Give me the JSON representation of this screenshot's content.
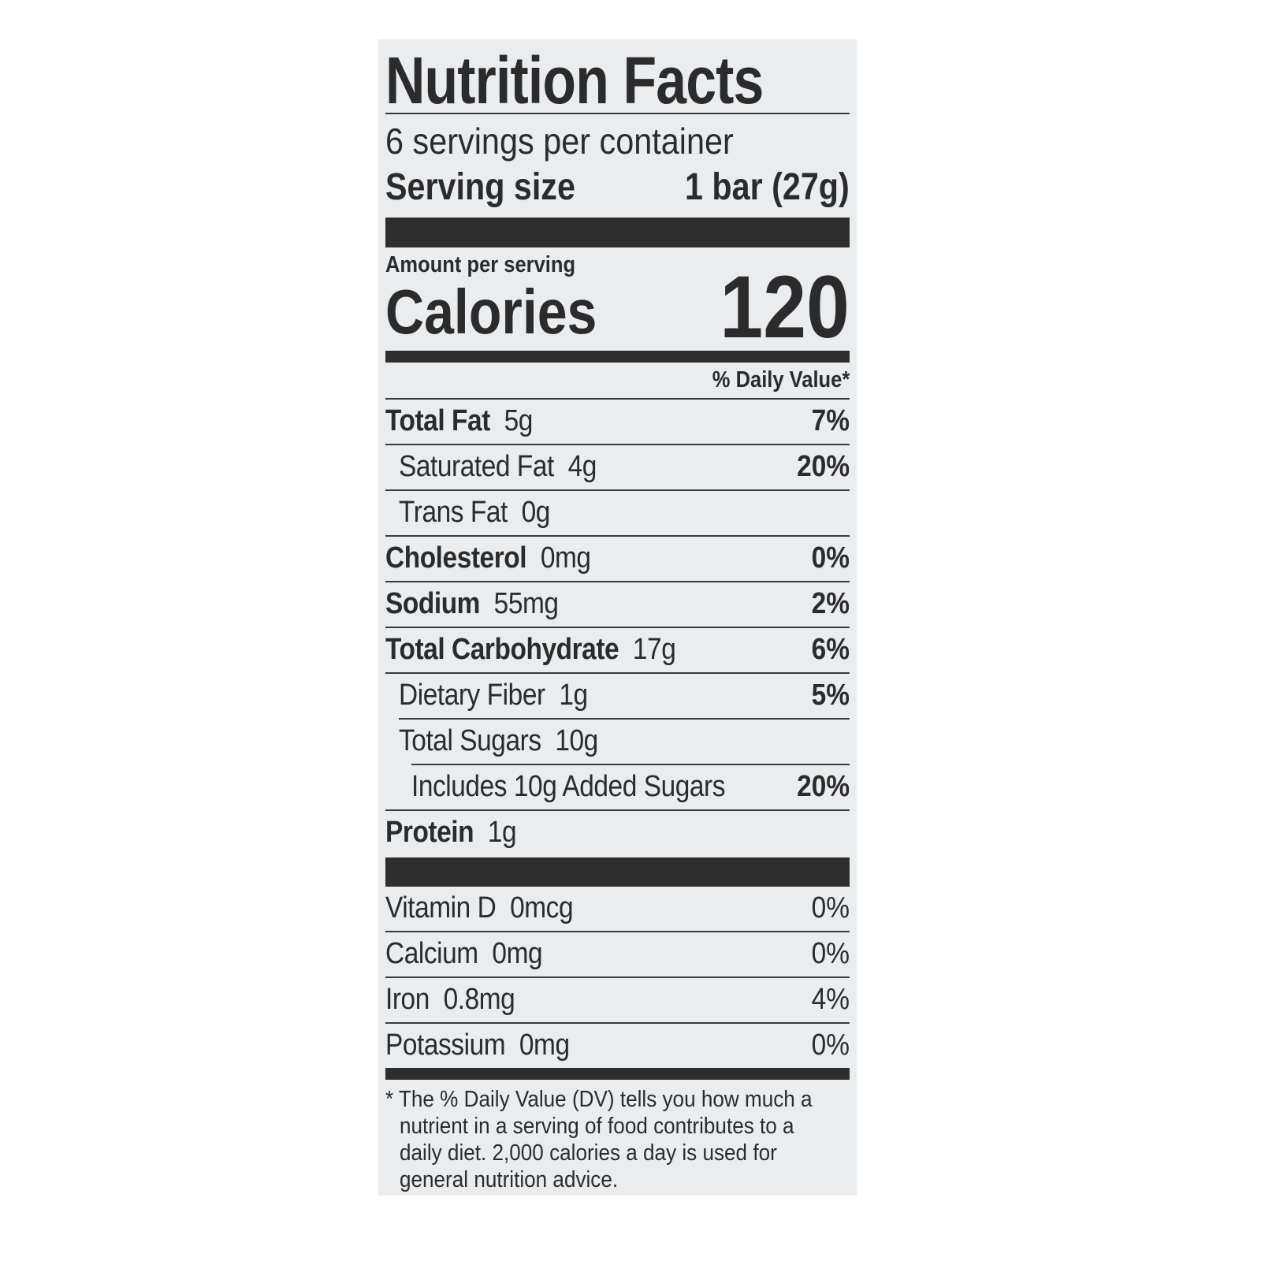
{
  "title": "Nutrition Facts",
  "servings_per_container": "6 servings per container",
  "serving_size_label": "Serving size",
  "serving_size_value": "1 bar (27g)",
  "amount_per_serving": "Amount per serving",
  "calories_label": "Calories",
  "calories_value": "120",
  "daily_value_header": "% Daily Value*",
  "nutrients": [
    {
      "name": "Total Fat",
      "amount": "5g",
      "dv": "7%"
    },
    {
      "name": "Saturated Fat",
      "amount": "4g",
      "dv": "20%"
    },
    {
      "name": "Trans Fat",
      "amount": "0g",
      "dv": ""
    },
    {
      "name": "Cholesterol",
      "amount": "0mg",
      "dv": "0%"
    },
    {
      "name": "Sodium",
      "amount": "55mg",
      "dv": "2%"
    },
    {
      "name": "Total Carbohydrate",
      "amount": "17g",
      "dv": "6%"
    },
    {
      "name": "Dietary Fiber",
      "amount": "1g",
      "dv": "5%"
    },
    {
      "name": "Total Sugars",
      "amount": "10g",
      "dv": ""
    },
    {
      "name": "Includes 10g Added Sugars",
      "amount": "",
      "dv": "20%"
    },
    {
      "name": "Protein",
      "amount": "1g",
      "dv": ""
    }
  ],
  "vitamins": [
    {
      "name": "Vitamin D",
      "amount": "0mcg",
      "dv": "0%"
    },
    {
      "name": "Calcium",
      "amount": "0mg",
      "dv": "0%"
    },
    {
      "name": "Iron",
      "amount": "0.8mg",
      "dv": "4%"
    },
    {
      "name": "Potassium",
      "amount": "0mg",
      "dv": "0%"
    }
  ],
  "footnote": "* The % Daily Value (DV) tells you how much a nutrient in a serving of food contributes to a daily diet. 2,000 calories a day is used for general nutrition advice."
}
